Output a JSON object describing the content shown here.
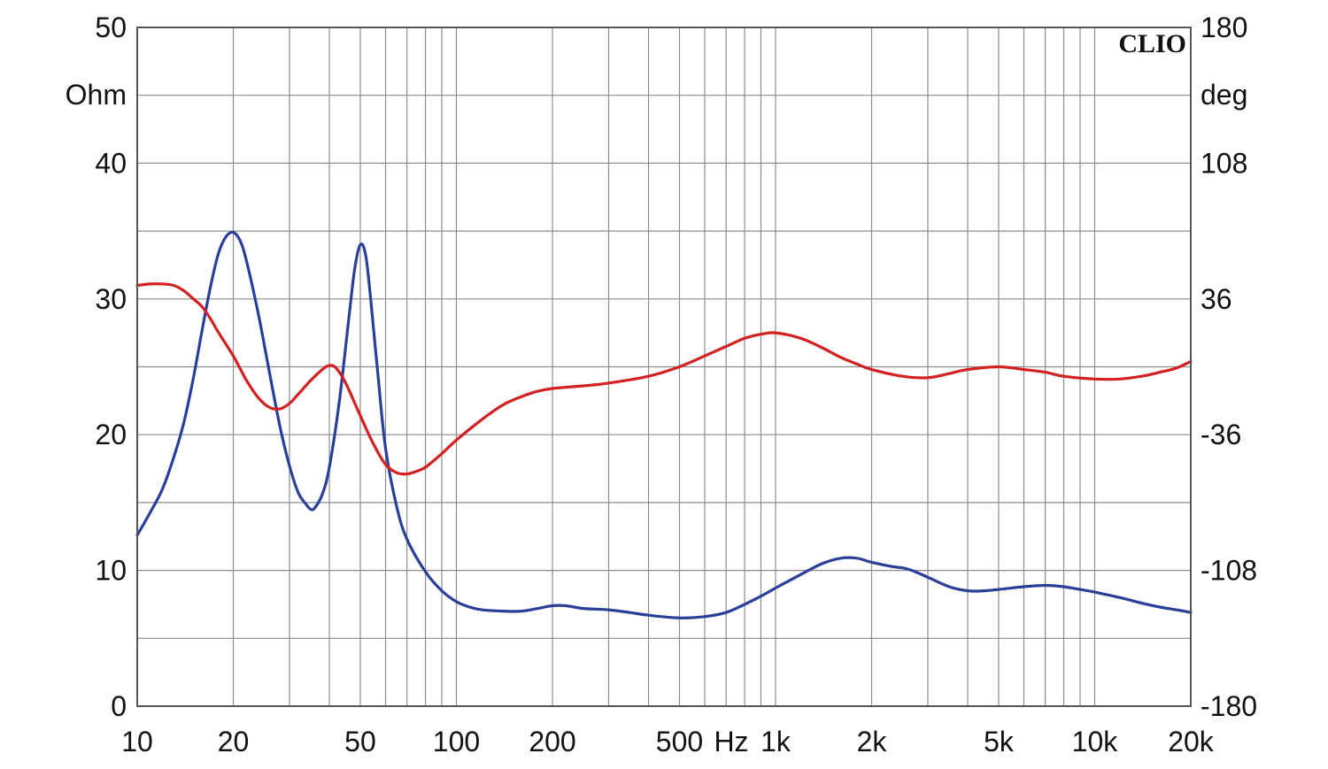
{
  "chart_data": {
    "type": "line",
    "title": "",
    "brand": "CLIO",
    "x_axis": {
      "scale": "log",
      "range": [
        10,
        20000
      ],
      "ticks": [
        {
          "value": 10,
          "label": "10"
        },
        {
          "value": 20,
          "label": "20"
        },
        {
          "value": 50,
          "label": "50"
        },
        {
          "value": 100,
          "label": "100"
        },
        {
          "value": 200,
          "label": "200"
        },
        {
          "value": 500,
          "label": "500"
        },
        {
          "value": 1000,
          "label": "1k"
        },
        {
          "value": 2000,
          "label": "2k"
        },
        {
          "value": 5000,
          "label": "5k"
        },
        {
          "value": 10000,
          "label": "10k"
        },
        {
          "value": 20000,
          "label": "20k"
        }
      ],
      "unit_label": "Hz"
    },
    "y_left": {
      "unit_label": "Ohm",
      "range": [
        0,
        50
      ],
      "ticks": [
        0,
        10,
        20,
        30,
        40,
        50
      ],
      "tick_labels": [
        "0",
        "10",
        "20",
        "30",
        "40",
        "50"
      ]
    },
    "y_right": {
      "unit_label": "deg",
      "range": [
        -180,
        180
      ],
      "tick_labels": [
        "-180",
        "-108",
        "-36",
        "36",
        "108",
        "180"
      ]
    },
    "grid": true,
    "series": [
      {
        "color": "#2a3f9a",
        "axis": "left",
        "points": [
          [
            10,
            12.6
          ],
          [
            11,
            14.3
          ],
          [
            12,
            16.0
          ],
          [
            13,
            18.3
          ],
          [
            14,
            20.9
          ],
          [
            15,
            24.2
          ],
          [
            16,
            27.8
          ],
          [
            17,
            31.0
          ],
          [
            18,
            33.4
          ],
          [
            19,
            34.6
          ],
          [
            20,
            34.9
          ],
          [
            21,
            34.3
          ],
          [
            22,
            32.8
          ],
          [
            24,
            28.8
          ],
          [
            26,
            24.5
          ],
          [
            28,
            20.6
          ],
          [
            30,
            17.7
          ],
          [
            32,
            15.7
          ],
          [
            34,
            14.8
          ],
          [
            35,
            14.5
          ],
          [
            36,
            14.6
          ],
          [
            38,
            15.6
          ],
          [
            40,
            17.6
          ],
          [
            43,
            22.5
          ],
          [
            46,
            28.5
          ],
          [
            48,
            32.2
          ],
          [
            50,
            34.0
          ],
          [
            52,
            33.2
          ],
          [
            54,
            29.8
          ],
          [
            57,
            24.0
          ],
          [
            60,
            19.0
          ],
          [
            65,
            14.7
          ],
          [
            70,
            12.3
          ],
          [
            80,
            9.9
          ],
          [
            90,
            8.5
          ],
          [
            100,
            7.7
          ],
          [
            110,
            7.3
          ],
          [
            120,
            7.1
          ],
          [
            140,
            7.0
          ],
          [
            160,
            7.0
          ],
          [
            180,
            7.2
          ],
          [
            200,
            7.4
          ],
          [
            220,
            7.4
          ],
          [
            250,
            7.2
          ],
          [
            300,
            7.1
          ],
          [
            350,
            6.9
          ],
          [
            400,
            6.7
          ],
          [
            500,
            6.5
          ],
          [
            600,
            6.6
          ],
          [
            700,
            6.9
          ],
          [
            800,
            7.5
          ],
          [
            900,
            8.1
          ],
          [
            1000,
            8.7
          ],
          [
            1200,
            9.7
          ],
          [
            1400,
            10.5
          ],
          [
            1600,
            10.9
          ],
          [
            1800,
            10.9
          ],
          [
            2000,
            10.6
          ],
          [
            2300,
            10.3
          ],
          [
            2600,
            10.1
          ],
          [
            3000,
            9.5
          ],
          [
            3500,
            8.8
          ],
          [
            4000,
            8.5
          ],
          [
            4500,
            8.5
          ],
          [
            5000,
            8.6
          ],
          [
            6000,
            8.8
          ],
          [
            7000,
            8.9
          ],
          [
            8000,
            8.8
          ],
          [
            9000,
            8.6
          ],
          [
            10000,
            8.4
          ],
          [
            12000,
            8.0
          ],
          [
            14000,
            7.6
          ],
          [
            16000,
            7.3
          ],
          [
            18000,
            7.1
          ],
          [
            20000,
            6.9
          ]
        ]
      },
      {
        "color": "#d42020",
        "axis": "left",
        "points": [
          [
            10,
            31.0
          ],
          [
            11,
            31.1
          ],
          [
            12,
            31.1
          ],
          [
            13,
            31.0
          ],
          [
            14,
            30.6
          ],
          [
            15,
            30.0
          ],
          [
            16,
            29.4
          ],
          [
            17,
            28.5
          ],
          [
            18,
            27.5
          ],
          [
            20,
            25.8
          ],
          [
            22,
            24.0
          ],
          [
            24,
            22.7
          ],
          [
            26,
            22.0
          ],
          [
            28,
            21.9
          ],
          [
            30,
            22.3
          ],
          [
            32,
            23.0
          ],
          [
            35,
            24.0
          ],
          [
            38,
            24.8
          ],
          [
            40,
            25.1
          ],
          [
            42,
            24.9
          ],
          [
            45,
            23.8
          ],
          [
            50,
            21.4
          ],
          [
            55,
            19.3
          ],
          [
            60,
            17.8
          ],
          [
            65,
            17.2
          ],
          [
            70,
            17.1
          ],
          [
            75,
            17.3
          ],
          [
            80,
            17.6
          ],
          [
            90,
            18.6
          ],
          [
            100,
            19.6
          ],
          [
            120,
            21.1
          ],
          [
            140,
            22.2
          ],
          [
            160,
            22.8
          ],
          [
            180,
            23.2
          ],
          [
            200,
            23.4
          ],
          [
            250,
            23.6
          ],
          [
            300,
            23.8
          ],
          [
            400,
            24.3
          ],
          [
            500,
            25.0
          ],
          [
            600,
            25.8
          ],
          [
            700,
            26.5
          ],
          [
            800,
            27.1
          ],
          [
            900,
            27.4
          ],
          [
            1000,
            27.5
          ],
          [
            1200,
            27.1
          ],
          [
            1400,
            26.4
          ],
          [
            1600,
            25.7
          ],
          [
            1800,
            25.2
          ],
          [
            2000,
            24.8
          ],
          [
            2500,
            24.3
          ],
          [
            3000,
            24.2
          ],
          [
            3500,
            24.5
          ],
          [
            4000,
            24.8
          ],
          [
            5000,
            25.0
          ],
          [
            6000,
            24.8
          ],
          [
            7000,
            24.6
          ],
          [
            8000,
            24.3
          ],
          [
            10000,
            24.1
          ],
          [
            12000,
            24.1
          ],
          [
            14000,
            24.3
          ],
          [
            16000,
            24.6
          ],
          [
            18000,
            24.9
          ],
          [
            20000,
            25.4
          ]
        ]
      }
    ]
  }
}
